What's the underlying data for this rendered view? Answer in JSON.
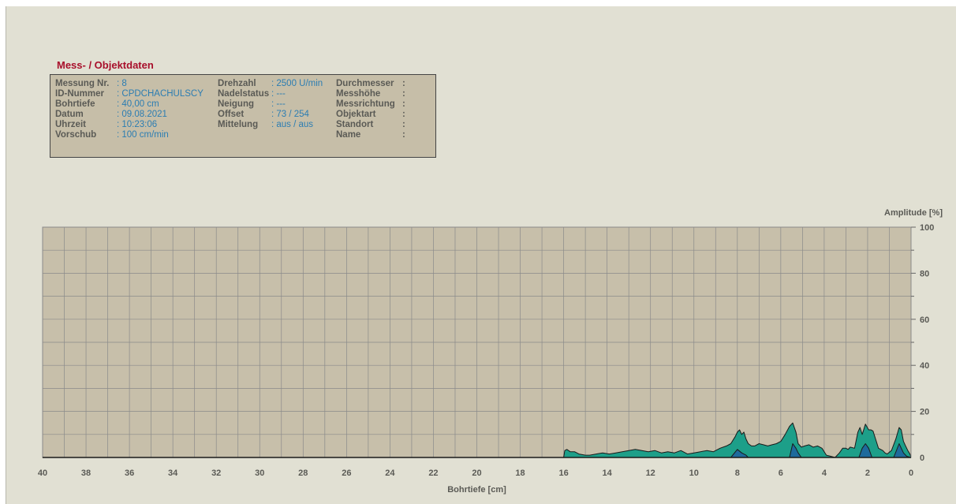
{
  "info": {
    "title": "Mess- / Objektdaten",
    "columns": [
      [
        {
          "label": "Messung Nr.",
          "value": ": 8"
        },
        {
          "label": "ID-Nummer",
          "value": ": CPDCHACHULSCY"
        },
        {
          "label": "Bohrtiefe",
          "value": ": 40,00 cm"
        },
        {
          "label": "Datum",
          "value": ": 09.08.2021"
        },
        {
          "label": "Uhrzeit",
          "value": ": 10:23:06"
        },
        {
          "label": "Vorschub",
          "value": ": 100 cm/min"
        }
      ],
      [
        {
          "label": "Drehzahl",
          "value": ": 2500 U/min"
        },
        {
          "label": "Nadelstatus",
          "value": ": ---"
        },
        {
          "label": "Neigung",
          "value": ": ---"
        },
        {
          "label": "Offset",
          "value": ": 73 / 254"
        },
        {
          "label": "Mittelung",
          "value": ": aus / aus"
        }
      ],
      [
        {
          "label": "Durchmesser",
          "value": ":"
        },
        {
          "label": "Messhöhe",
          "value": ":"
        },
        {
          "label": "Messrichtung",
          "value": ":"
        },
        {
          "label": "Objektart",
          "value": ":"
        },
        {
          "label": "Standort",
          "value": ":"
        },
        {
          "label": "Name",
          "value": ":"
        }
      ]
    ]
  },
  "chart_data": {
    "type": "area",
    "xlabel": "Bohrtiefe [cm]",
    "ylabel": "Amplitude [%]",
    "xlim": [
      40,
      0
    ],
    "ylim": [
      0,
      100
    ],
    "x_ticks": [
      40,
      38,
      36,
      34,
      32,
      30,
      28,
      26,
      24,
      22,
      20,
      18,
      16,
      14,
      12,
      10,
      8,
      6,
      4,
      2,
      0
    ],
    "y_ticks": [
      0,
      20,
      40,
      60,
      80,
      100
    ],
    "grid": true,
    "colors": {
      "plot_bg": "#c7bfaa",
      "grid": "#8a8a8a",
      "series1": "#1d9f89",
      "series2": "#1e6a9c",
      "outline": "#1a1a1a"
    },
    "series": [
      {
        "name": "",
        "x": [
          16.0,
          15.95,
          15.85,
          15.7,
          15.5,
          15.3,
          15.0,
          14.8,
          14.5,
          14.2,
          13.9,
          13.6,
          13.3,
          13.0,
          12.7,
          12.4,
          12.1,
          11.8,
          11.5,
          11.2,
          10.9,
          10.6,
          10.3,
          10.0,
          9.7,
          9.4,
          9.1,
          8.8,
          8.5,
          8.3,
          8.1,
          8.0,
          7.9,
          7.8,
          7.7,
          7.6,
          7.5,
          7.35,
          7.2,
          7.0,
          6.8,
          6.6,
          6.4,
          6.2,
          6.0,
          5.8,
          5.6,
          5.45,
          5.3,
          5.2,
          5.05,
          4.9,
          4.7,
          4.5,
          4.3,
          4.1,
          3.9,
          3.7,
          3.5,
          3.3,
          3.15,
          3.0,
          2.9,
          2.8,
          2.6,
          2.45,
          2.35,
          2.25,
          2.1,
          1.95,
          1.85,
          1.75,
          1.6,
          1.5,
          1.4,
          1.3,
          1.2,
          1.1,
          0.9,
          0.7,
          0.55,
          0.45,
          0.35,
          0.25,
          0.15,
          0.05,
          0.0
        ],
        "values": [
          0,
          3,
          3.5,
          2.5,
          2.5,
          1.5,
          1,
          1,
          1.5,
          2,
          1.5,
          2,
          2.5,
          3,
          3.5,
          3,
          2.5,
          3,
          2,
          2.5,
          2,
          3,
          1.5,
          2,
          2.5,
          3,
          2.5,
          4,
          5,
          6,
          9,
          11,
          12,
          10,
          11,
          8,
          6,
          5,
          5,
          6,
          5.5,
          5,
          5.5,
          6,
          7,
          10,
          13.5,
          15,
          11,
          6,
          4.5,
          5,
          5.5,
          4.5,
          5,
          4,
          1,
          0.5,
          0,
          2,
          4,
          4,
          3.5,
          4.5,
          4,
          11,
          13,
          10,
          14.5,
          12,
          12,
          11.5,
          7,
          4,
          3.5,
          3,
          2,
          1.5,
          3,
          8,
          13,
          12,
          7,
          5,
          3,
          1.5,
          0
        ]
      },
      {
        "name": "",
        "x": [
          8.3,
          8.0,
          7.8,
          7.6,
          7.5,
          5.6,
          5.45,
          5.3,
          5.2,
          5.05,
          4.9,
          2.4,
          2.25,
          2.1,
          1.95,
          1.8,
          0.8,
          0.55,
          0.45,
          0.35,
          0.2,
          0.0
        ],
        "values": [
          0,
          3.5,
          2,
          1,
          0,
          0,
          6,
          4,
          2,
          0,
          0,
          0,
          4,
          6,
          4,
          0,
          0,
          6,
          4,
          2,
          0.5,
          0
        ]
      }
    ]
  }
}
